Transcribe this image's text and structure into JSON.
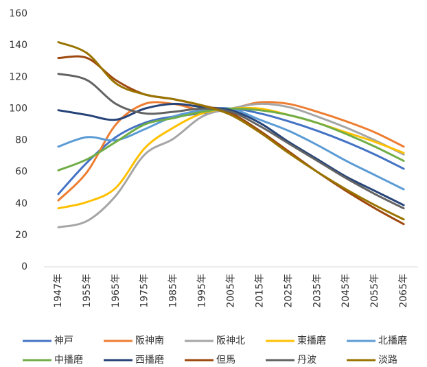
{
  "chart_data": {
    "type": "line",
    "categories": [
      "1947年",
      "1955年",
      "1965年",
      "1975年",
      "1985年",
      "1995年",
      "2005年",
      "2015年",
      "2025年",
      "2035年",
      "2045年",
      "2055年",
      "2065年"
    ],
    "ylim": [
      0,
      160
    ],
    "yticks": [
      0,
      20,
      40,
      60,
      80,
      100,
      120,
      140,
      160
    ],
    "grid": false,
    "legend": "bottom",
    "series": [
      {
        "name": "神戸",
        "color": "#4472c4",
        "values": [
          46,
          66,
          82,
          91,
          95,
          97,
          100,
          97,
          92,
          86,
          79,
          71,
          62
        ]
      },
      {
        "name": "阪神南",
        "color": "#ed7d31",
        "values": [
          42,
          60,
          90,
          103,
          103,
          99,
          100,
          104,
          103,
          98,
          92,
          85,
          76
        ]
      },
      {
        "name": "阪神北",
        "color": "#a5a5a5",
        "values": [
          25,
          29,
          45,
          71,
          81,
          95,
          100,
          103,
          101,
          95,
          88,
          80,
          71
        ]
      },
      {
        "name": "東播磨",
        "color": "#ffc000",
        "values": [
          37,
          41,
          50,
          75,
          88,
          97,
          100,
          100,
          96,
          91,
          85,
          79,
          72
        ]
      },
      {
        "name": "北播磨",
        "color": "#5b9bd5",
        "values": [
          76,
          82,
          80,
          87,
          95,
          99,
          100,
          93,
          86,
          77,
          67,
          58,
          49
        ]
      },
      {
        "name": "中播磨",
        "color": "#70ad47",
        "values": [
          61,
          68,
          79,
          90,
          94,
          98,
          100,
          99,
          96,
          91,
          84,
          76,
          67
        ]
      },
      {
        "name": "西播磨",
        "color": "#264478",
        "values": [
          99,
          96,
          93,
          100,
          103,
          101,
          99,
          91,
          79,
          68,
          57,
          48,
          39
        ]
      },
      {
        "name": "但馬",
        "color": "#9e480e",
        "values": [
          132,
          132,
          118,
          109,
          106,
          102,
          97,
          86,
          73,
          60,
          48,
          37,
          27
        ]
      },
      {
        "name": "丹波",
        "color": "#636363",
        "values": [
          122,
          118,
          103,
          97,
          98,
          100,
          98,
          89,
          78,
          67,
          56,
          46,
          37
        ]
      },
      {
        "name": "淡路",
        "color": "#997300",
        "values": [
          142,
          135,
          116,
          109,
          106,
          102,
          96,
          85,
          72,
          60,
          49,
          39,
          30
        ]
      }
    ]
  }
}
